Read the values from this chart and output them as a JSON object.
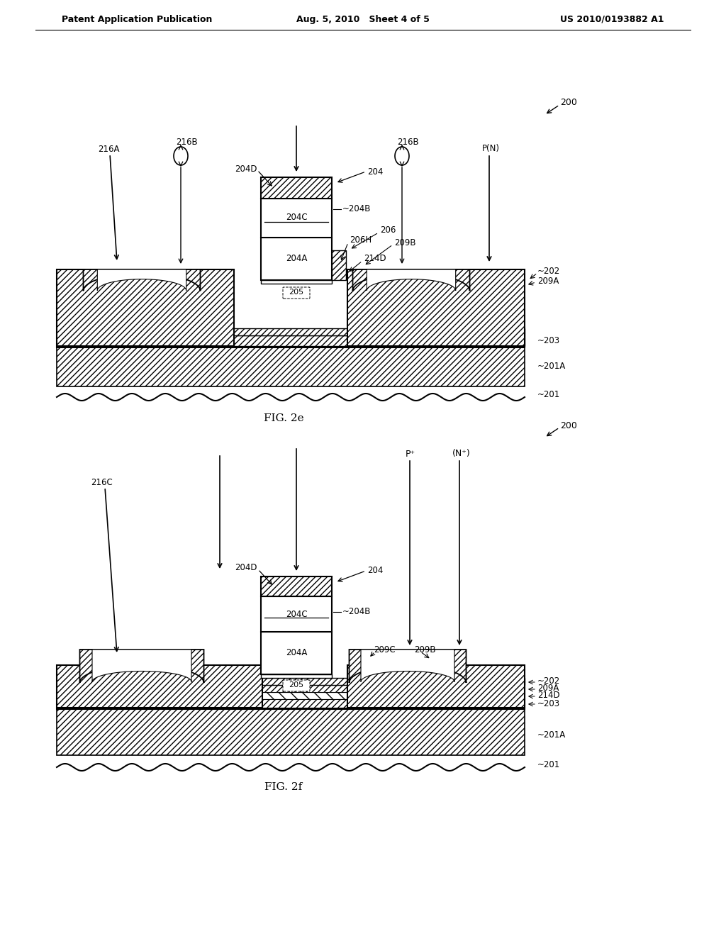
{
  "header_left": "Patent Application Publication",
  "header_mid": "Aug. 5, 2010   Sheet 4 of 5",
  "header_right": "US 2010/0193882 A1",
  "fig_e_label": "FIG. 2e",
  "fig_f_label": "FIG. 2f",
  "bg_color": "#ffffff"
}
